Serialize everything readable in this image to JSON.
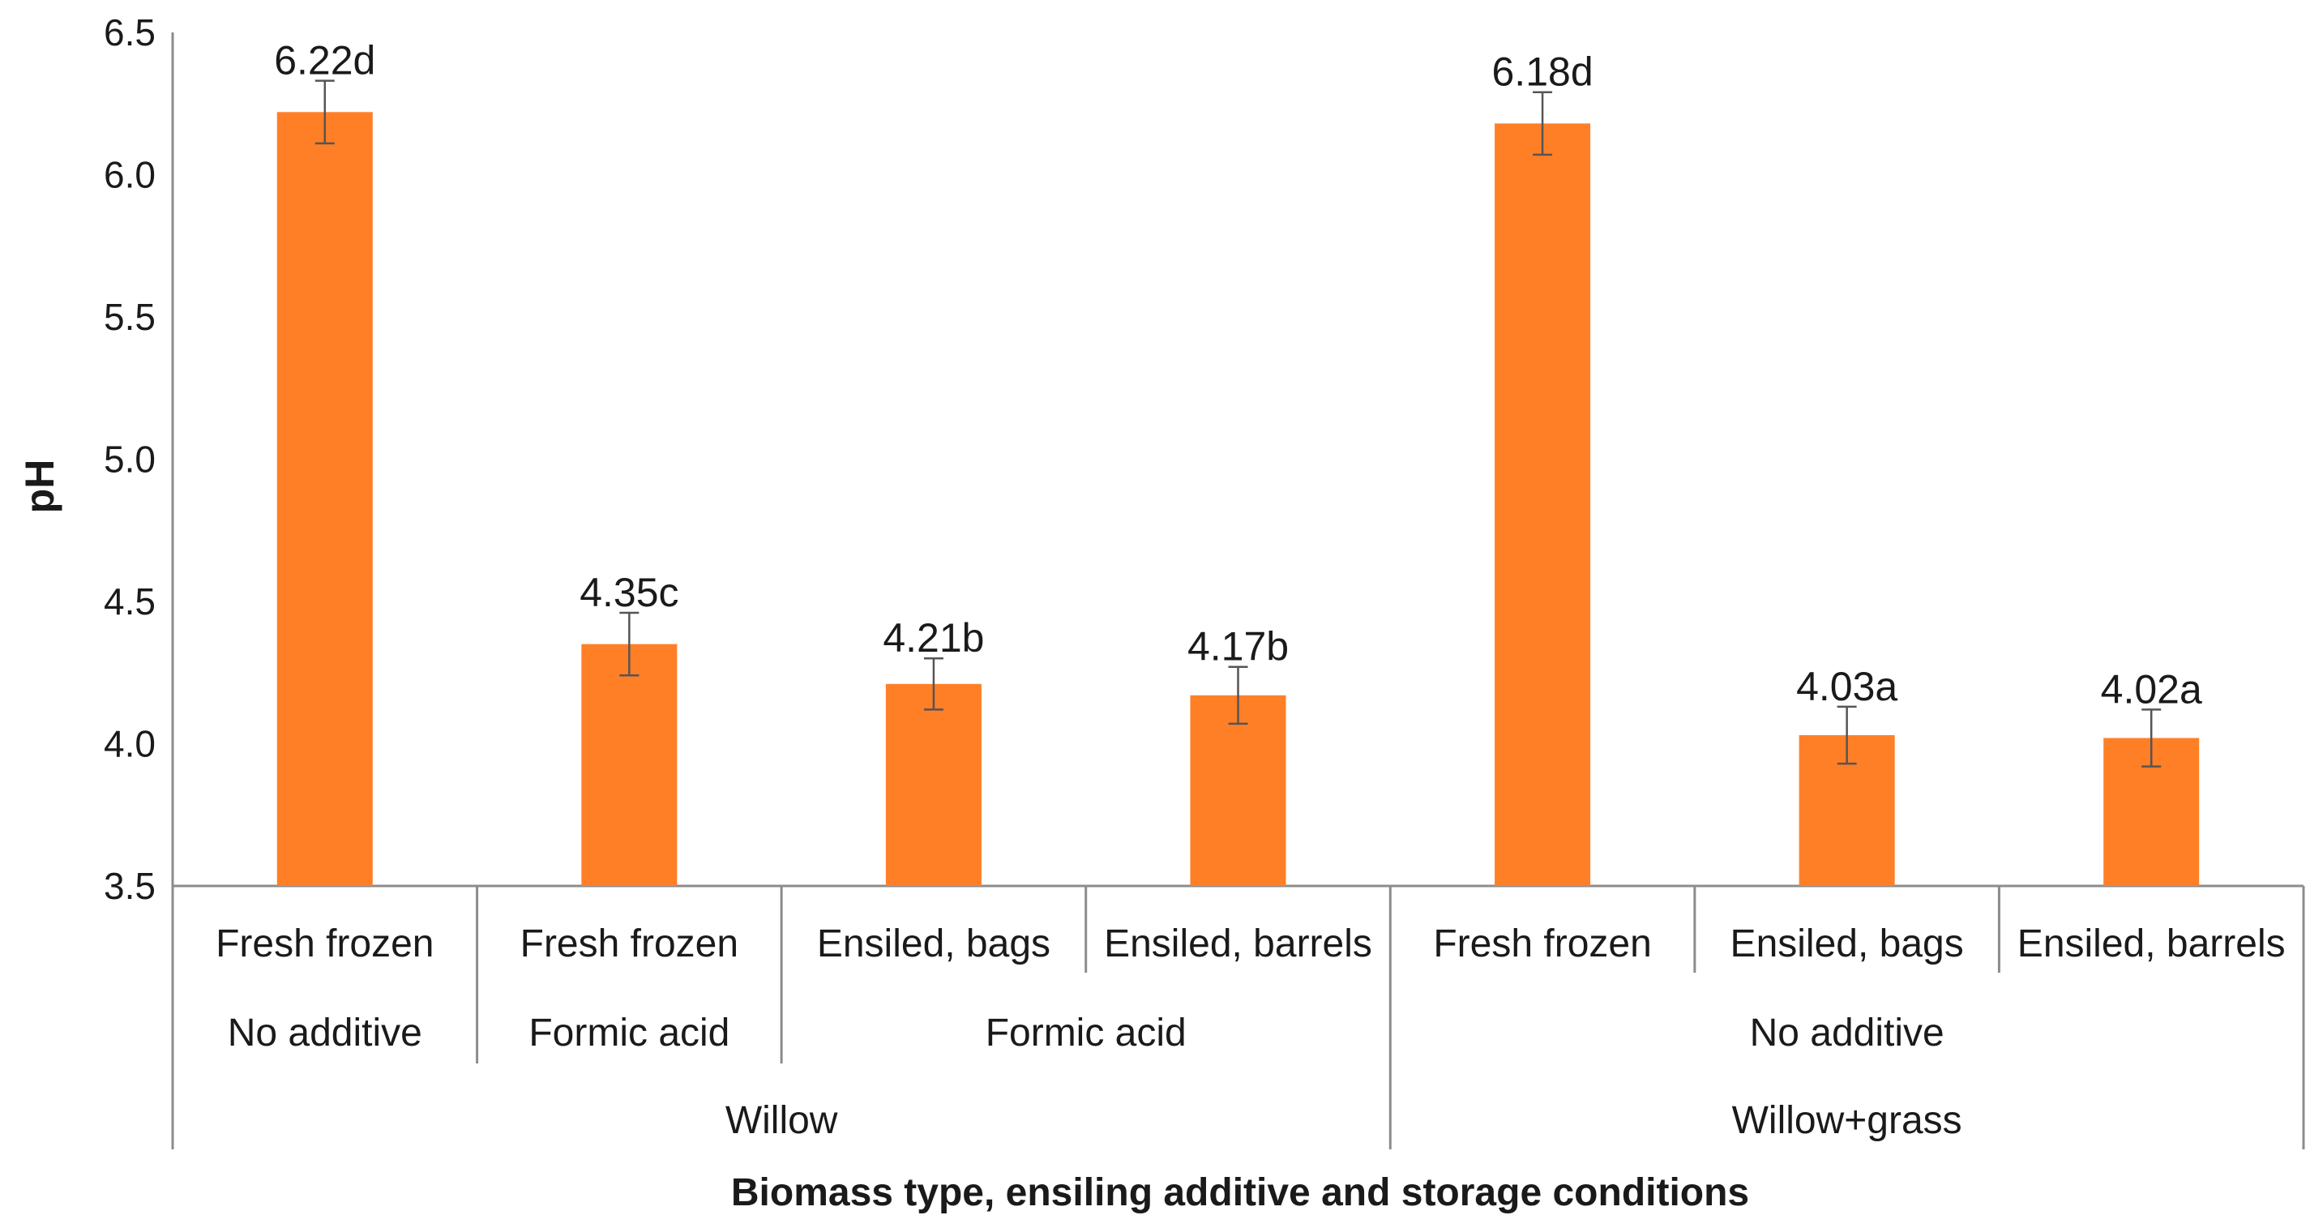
{
  "chart_data": {
    "type": "bar",
    "ylabel": "pH",
    "xlabel": "Biomass type, ensiling additive and storage conditions",
    "ylim": [
      3.5,
      6.5
    ],
    "yticks": [
      "3.5",
      "4.0",
      "4.5",
      "5.0",
      "5.5",
      "6.0",
      "6.5"
    ],
    "bar_color": "#FF7F27",
    "grid": false,
    "categories": [
      "Fresh frozen",
      "Fresh frozen",
      "Ensiled, bags",
      "Ensiled, barrels",
      "Fresh frozen",
      "Ensiled, bags",
      "Ensiled, barrels"
    ],
    "values": [
      6.22,
      4.35,
      4.21,
      4.17,
      6.18,
      4.03,
      4.02
    ],
    "error": [
      0.11,
      0.11,
      0.09,
      0.1,
      0.11,
      0.1,
      0.1
    ],
    "data_labels": [
      "6.22d",
      "4.35c",
      "4.21b",
      "4.17b",
      "6.18d",
      "4.03a",
      "4.02a"
    ],
    "additive_groups": [
      {
        "label": "No additive",
        "span": 1
      },
      {
        "label": "Formic acid",
        "span": 1
      },
      {
        "label": "Formic acid",
        "span": 2
      },
      {
        "label": "No additive",
        "span": 3
      }
    ],
    "biomass_groups": [
      {
        "label": "Willow",
        "span": 4
      },
      {
        "label": "Willow+grass",
        "span": 3
      }
    ]
  }
}
